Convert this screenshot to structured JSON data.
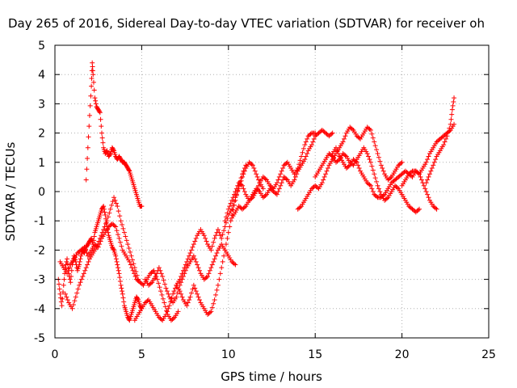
{
  "chart_data": {
    "type": "scatter",
    "title": "Day 265 of 2016, Sidereal Day-to-day VTEC variation (SDTVAR) for receiver oh",
    "xlabel": "GPS time / hours",
    "ylabel": "SDTVAR / TECUs",
    "xlim": [
      0,
      25
    ],
    "ylim": [
      -5,
      5
    ],
    "x_ticks": [
      "0",
      "5",
      "10",
      "15",
      "20",
      "25"
    ],
    "y_ticks": [
      "-5",
      "-4",
      "-3",
      "-2",
      "-1",
      "0",
      "1",
      "2",
      "3",
      "4",
      "5"
    ],
    "grid": true,
    "marker": "plus",
    "series_color": "#ff0000",
    "series": [
      {
        "x": [
          0.2,
          0.3,
          0.4,
          0.5,
          0.6,
          0.7,
          0.8,
          0.9,
          1.0,
          1.1,
          1.2,
          1.3,
          1.4,
          1.5,
          1.6,
          1.7,
          1.8,
          1.9,
          2.0,
          2.1,
          2.2,
          2.3,
          2.4,
          2.5,
          2.6,
          2.7,
          2.8,
          2.9,
          3.0,
          3.1,
          3.2,
          3.3,
          3.4,
          3.5,
          3.6,
          3.7,
          3.8,
          3.9,
          4.0,
          4.1,
          4.2,
          4.3,
          4.4,
          4.5,
          4.6,
          4.7,
          4.8,
          4.9,
          5.0
        ],
        "y": [
          -3.0,
          -3.5,
          -3.9,
          -3.2,
          -2.6,
          -2.3,
          -2.8,
          -3.1,
          -2.5,
          -2.2,
          -2.4,
          -2.7,
          -2.5,
          -2.2,
          -2.0,
          -2.1,
          -1.9,
          -1.8,
          -1.7,
          -1.6,
          -1.8,
          -1.4,
          -1.2,
          -1.0,
          -0.8,
          -0.6,
          -0.5,
          -0.8,
          -1.2,
          -1.5,
          -1.7,
          -1.9,
          -2.0,
          -2.2,
          -2.5,
          -2.8,
          -3.2,
          -3.5,
          -3.9,
          -4.1,
          -4.3,
          -4.4,
          -4.2,
          -4.0,
          -3.8,
          -3.6,
          -3.7,
          -3.9,
          -4.0
        ]
      },
      {
        "x": [
          0.3,
          0.5,
          0.7,
          0.9,
          1.1,
          1.3,
          1.5,
          1.7,
          1.9,
          2.1,
          2.3,
          2.5,
          2.7,
          2.9,
          3.1,
          3.3,
          3.5,
          3.7,
          3.9,
          4.1,
          4.3,
          4.5,
          4.7,
          4.9,
          5.1,
          5.3,
          5.5,
          5.7,
          5.9,
          6.1,
          6.3,
          6.5,
          6.7,
          6.9,
          7.1
        ],
        "y": [
          -2.4,
          -2.6,
          -2.8,
          -2.5,
          -2.3,
          -2.1,
          -2.0,
          -1.9,
          -2.2,
          -2.0,
          -1.8,
          -1.9,
          -1.6,
          -1.4,
          -1.2,
          -1.1,
          -1.2,
          -1.6,
          -2.0,
          -2.2,
          -2.4,
          -2.7,
          -3.0,
          -3.1,
          -3.2,
          -3.0,
          -2.8,
          -2.7,
          -3.0,
          -3.4,
          -3.8,
          -4.2,
          -4.4,
          -4.3,
          -4.1
        ]
      },
      {
        "x": [
          0.6,
          0.8,
          1.0,
          1.2,
          1.4,
          1.6,
          1.8,
          2.0,
          2.2,
          2.4,
          2.6,
          2.8,
          3.0,
          3.2,
          3.4,
          3.6,
          3.8,
          4.0,
          4.2,
          4.4,
          4.6,
          4.8
        ],
        "y": [
          -3.5,
          -3.8,
          -4.0,
          -3.6,
          -3.2,
          -2.9,
          -2.6,
          -2.3,
          -2.1,
          -1.9,
          -1.6,
          -1.3,
          -1.0,
          -0.6,
          -0.2,
          -0.5,
          -1.0,
          -1.4,
          -1.8,
          -2.2,
          -2.6,
          -3.0
        ]
      },
      {
        "x": [
          1.8,
          1.9,
          2.0,
          2.1,
          2.15,
          2.2,
          2.3,
          2.4,
          2.5,
          2.6,
          2.7,
          2.8,
          2.9,
          3.0,
          3.1,
          3.2,
          3.3,
          3.4,
          3.5,
          3.6,
          3.7,
          3.8,
          3.9,
          4.0,
          4.1,
          4.2,
          4.3,
          4.4,
          4.5,
          4.6,
          4.7,
          4.8,
          4.9,
          5.0
        ],
        "y": [
          0.4,
          1.5,
          2.6,
          3.6,
          4.4,
          4.0,
          3.2,
          2.9,
          2.8,
          2.7,
          2.0,
          1.5,
          1.3,
          1.4,
          1.2,
          1.3,
          1.5,
          1.4,
          1.2,
          1.1,
          1.2,
          1.1,
          1.0,
          1.0,
          0.9,
          0.8,
          0.7,
          0.5,
          0.3,
          0.1,
          -0.1,
          -0.3,
          -0.5,
          -0.5
        ]
      },
      {
        "x": [
          4.6,
          4.8,
          5.0,
          5.2,
          5.4,
          5.6,
          5.8,
          6.0,
          6.2,
          6.4,
          6.6,
          6.8,
          7.0,
          7.2,
          7.4,
          7.6,
          7.8,
          8.0,
          8.2,
          8.4,
          8.6,
          8.8,
          9.0,
          9.2,
          9.4,
          9.6,
          9.8,
          10.0,
          10.2,
          10.4,
          10.6,
          10.8,
          11.0
        ],
        "y": [
          -4.4,
          -4.2,
          -4.0,
          -3.8,
          -3.7,
          -3.9,
          -4.1,
          -4.3,
          -4.4,
          -4.2,
          -3.9,
          -3.5,
          -3.2,
          -3.4,
          -3.7,
          -3.9,
          -3.6,
          -3.2,
          -3.5,
          -3.8,
          -4.0,
          -4.2,
          -4.1,
          -3.7,
          -3.2,
          -2.6,
          -2.0,
          -1.4,
          -0.8,
          -0.3,
          0.2,
          0.6,
          0.9
        ]
      },
      {
        "x": [
          5.2,
          5.4,
          5.6,
          5.8,
          6.0,
          6.2,
          6.4,
          6.6,
          6.8,
          7.0,
          7.2,
          7.4,
          7.6,
          7.8,
          8.0,
          8.2,
          8.4,
          8.6,
          8.8,
          9.0,
          9.2,
          9.4,
          9.6,
          9.8,
          10.0,
          10.2,
          10.4
        ],
        "y": [
          -3.0,
          -3.2,
          -3.1,
          -2.9,
          -2.6,
          -2.9,
          -3.3,
          -3.6,
          -3.8,
          -3.6,
          -3.2,
          -2.9,
          -2.6,
          -2.4,
          -2.2,
          -2.5,
          -2.8,
          -3.0,
          -2.9,
          -2.6,
          -2.3,
          -2.0,
          -1.8,
          -2.0,
          -2.2,
          -2.4,
          -2.5
        ]
      },
      {
        "x": [
          7.0,
          7.2,
          7.4,
          7.6,
          7.8,
          8.0,
          8.2,
          8.4,
          8.6,
          8.8,
          9.0,
          9.2,
          9.4,
          9.6,
          9.8,
          10.0,
          10.2,
          10.4,
          10.6,
          10.8,
          11.0,
          11.2,
          11.4,
          11.6,
          11.8,
          12.0
        ],
        "y": [
          -3.2,
          -3.0,
          -2.7,
          -2.4,
          -2.1,
          -1.8,
          -1.5,
          -1.3,
          -1.5,
          -1.8,
          -2.0,
          -1.6,
          -1.3,
          -1.6,
          -1.2,
          -0.8,
          -0.6,
          -0.2,
          0.1,
          0.5,
          0.8,
          1.0,
          0.9,
          0.6,
          0.3,
          0.1
        ]
      },
      {
        "x": [
          9.8,
          10.0,
          10.2,
          10.4,
          10.6,
          10.8,
          11.0,
          11.2,
          11.4,
          11.6,
          11.8,
          12.0,
          12.2,
          12.4,
          12.6,
          12.8,
          13.0,
          13.2,
          13.4,
          13.6,
          13.8,
          14.0,
          14.2,
          14.4,
          14.6,
          14.8,
          15.0
        ],
        "y": [
          -1.0,
          -0.6,
          -0.3,
          0.0,
          0.3,
          0.2,
          -0.1,
          -0.3,
          -0.2,
          0.0,
          0.3,
          0.5,
          0.4,
          0.2,
          0.1,
          0.3,
          0.6,
          0.9,
          1.0,
          0.8,
          0.6,
          0.8,
          1.2,
          1.6,
          1.9,
          2.0,
          2.0
        ]
      },
      {
        "x": [
          10.2,
          10.4,
          10.6,
          10.8,
          11.0,
          11.2,
          11.4,
          11.6,
          11.8,
          12.0,
          12.2,
          12.4,
          12.6,
          12.8,
          13.0,
          13.2,
          13.4,
          13.6,
          13.8,
          14.0,
          14.2,
          14.4,
          14.6,
          14.8,
          15.0,
          15.2,
          15.4,
          15.6,
          15.8,
          16.0
        ],
        "y": [
          -0.9,
          -0.7,
          -0.5,
          -0.6,
          -0.5,
          -0.3,
          -0.1,
          0.1,
          0.0,
          -0.2,
          -0.1,
          0.1,
          0.0,
          -0.1,
          0.2,
          0.5,
          0.4,
          0.2,
          0.4,
          0.7,
          0.9,
          1.1,
          1.4,
          1.6,
          1.9,
          2.0,
          2.1,
          2.0,
          1.9,
          2.0
        ]
      },
      {
        "x": [
          14.0,
          14.2,
          14.4,
          14.6,
          14.8,
          15.0,
          15.2,
          15.4,
          15.6,
          15.8,
          16.0,
          16.2,
          16.4,
          16.6,
          16.8,
          17.0,
          17.2,
          17.4,
          17.6,
          17.8,
          18.0,
          18.2,
          18.4,
          18.6,
          18.8,
          19.0,
          19.2,
          19.4,
          19.6,
          19.8,
          20.0
        ],
        "y": [
          -0.6,
          -0.5,
          -0.3,
          -0.1,
          0.1,
          0.2,
          0.1,
          0.3,
          0.6,
          0.9,
          1.1,
          1.3,
          1.5,
          1.7,
          2.0,
          2.2,
          2.1,
          1.9,
          1.8,
          2.0,
          2.2,
          2.1,
          1.7,
          1.3,
          0.9,
          0.6,
          0.4,
          0.5,
          0.7,
          0.9,
          1.0
        ]
      },
      {
        "x": [
          15.0,
          15.2,
          15.4,
          15.6,
          15.8,
          16.0,
          16.2,
          16.4,
          16.6,
          16.8,
          17.0,
          17.2,
          17.4,
          17.6,
          17.8,
          18.0,
          18.2,
          18.4,
          18.6,
          18.8,
          19.0,
          19.2,
          19.4,
          19.6,
          19.8,
          20.0,
          20.2,
          20.4,
          20.6,
          20.8,
          21.0
        ],
        "y": [
          0.5,
          0.7,
          0.9,
          1.1,
          1.3,
          1.2,
          1.0,
          1.1,
          1.3,
          1.2,
          1.0,
          0.9,
          1.1,
          1.3,
          1.5,
          1.3,
          1.0,
          0.6,
          0.2,
          -0.1,
          -0.3,
          -0.2,
          0.0,
          0.2,
          0.1,
          -0.1,
          -0.3,
          -0.5,
          -0.6,
          -0.7,
          -0.6
        ]
      },
      {
        "x": [
          16.0,
          16.2,
          16.4,
          16.6,
          16.8,
          17.0,
          17.2,
          17.4,
          17.6,
          17.8,
          18.0,
          18.2,
          18.4,
          18.6,
          18.8,
          19.0,
          19.2,
          19.4,
          19.6,
          19.8,
          20.0,
          20.2,
          20.4,
          20.6,
          20.8,
          21.0,
          21.2,
          21.4,
          21.6,
          21.8,
          22.0
        ],
        "y": [
          1.3,
          1.5,
          1.2,
          1.0,
          0.8,
          0.9,
          1.1,
          1.0,
          0.7,
          0.5,
          0.3,
          0.2,
          -0.1,
          -0.2,
          -0.2,
          -0.1,
          0.1,
          0.3,
          0.4,
          0.5,
          0.6,
          0.7,
          0.6,
          0.5,
          0.7,
          0.6,
          0.3,
          0.0,
          -0.3,
          -0.5,
          -0.6
        ]
      },
      {
        "x": [
          20.0,
          20.2,
          20.4,
          20.6,
          20.8,
          21.0,
          21.2,
          21.4,
          21.6,
          21.8,
          22.0,
          22.2,
          22.4,
          22.6,
          22.8,
          23.0
        ],
        "y": [
          0.2,
          0.4,
          0.6,
          0.7,
          0.7,
          0.6,
          0.8,
          1.0,
          1.3,
          1.5,
          1.7,
          1.8,
          1.9,
          2.0,
          2.1,
          2.3
        ]
      },
      {
        "x": [
          21.4,
          21.6,
          21.8,
          22.0,
          22.2,
          22.4,
          22.6,
          22.8,
          22.9,
          23.0
        ],
        "y": [
          0.3,
          0.6,
          0.9,
          1.2,
          1.4,
          1.6,
          1.9,
          2.3,
          2.8,
          3.2
        ]
      }
    ]
  }
}
